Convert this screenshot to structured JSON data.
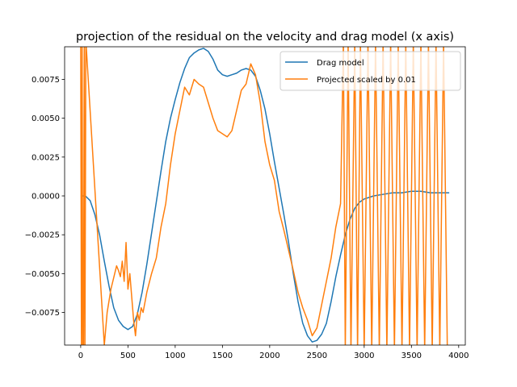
{
  "chart_data": {
    "type": "line",
    "title": "projection of the residual on the velocity and drag model (x axis)",
    "xlabel": "",
    "ylabel": "",
    "xlim": [
      -170,
      4070
    ],
    "ylim": [
      -0.0096,
      0.0096
    ],
    "xticks": [
      0,
      500,
      1000,
      1500,
      2000,
      2500,
      3000,
      3500,
      4000
    ],
    "xtick_labels": [
      "0",
      "500",
      "1000",
      "1500",
      "2000",
      "2500",
      "3000",
      "3500",
      "4000"
    ],
    "yticks": [
      -0.0075,
      -0.005,
      -0.0025,
      0.0,
      0.0025,
      0.005,
      0.0075
    ],
    "ytick_labels": [
      "−0.0075",
      "−0.0050",
      "−0.0025",
      "0.0000",
      "0.0025",
      "0.0050",
      "0.0075"
    ],
    "grid": false,
    "legend_position": "top-right",
    "series": [
      {
        "name": "Drag model",
        "color": "#1f77b4",
        "x": [
          0,
          50,
          100,
          150,
          200,
          250,
          300,
          350,
          400,
          450,
          500,
          550,
          600,
          650,
          700,
          750,
          800,
          850,
          900,
          950,
          1000,
          1050,
          1100,
          1150,
          1200,
          1250,
          1300,
          1350,
          1400,
          1450,
          1500,
          1550,
          1600,
          1650,
          1700,
          1750,
          1800,
          1850,
          1900,
          1950,
          2000,
          2050,
          2100,
          2150,
          2200,
          2250,
          2300,
          2350,
          2400,
          2450,
          2500,
          2550,
          2600,
          2650,
          2700,
          2750,
          2800,
          2850,
          2900,
          2950,
          3000,
          3100,
          3200,
          3300,
          3400,
          3500,
          3600,
          3700,
          3800,
          3900
        ],
        "y": [
          0.0,
          0.0,
          -0.0003,
          -0.0012,
          -0.0025,
          -0.0042,
          -0.0058,
          -0.0072,
          -0.008,
          -0.0084,
          -0.0086,
          -0.0084,
          -0.0076,
          -0.0062,
          -0.0044,
          -0.0024,
          -0.0004,
          0.0016,
          0.0035,
          0.005,
          0.0062,
          0.0073,
          0.0082,
          0.0089,
          0.0092,
          0.0094,
          0.0095,
          0.0093,
          0.0088,
          0.0081,
          0.0078,
          0.0077,
          0.0078,
          0.0079,
          0.0081,
          0.0082,
          0.0081,
          0.0077,
          0.0068,
          0.0056,
          0.004,
          0.0022,
          0.0005,
          -0.0012,
          -0.003,
          -0.005,
          -0.0068,
          -0.0082,
          -0.009,
          -0.0094,
          -0.0093,
          -0.0089,
          -0.0082,
          -0.0068,
          -0.0052,
          -0.0038,
          -0.0025,
          -0.0015,
          -0.0008,
          -0.0004,
          -0.0002,
          0.0,
          0.0001,
          0.0002,
          0.0002,
          0.0003,
          0.0003,
          0.0002,
          0.0002,
          0.0002
        ]
      },
      {
        "name": "Projected scaled by 0.01",
        "color": "#ff7f0e",
        "x": [
          0,
          8,
          15,
          22,
          30,
          38,
          45,
          55,
          250,
          280,
          320,
          340,
          360,
          380,
          400,
          420,
          440,
          460,
          480,
          500,
          520,
          540,
          560,
          580,
          600,
          620,
          640,
          660,
          700,
          750,
          800,
          850,
          900,
          950,
          1000,
          1050,
          1100,
          1150,
          1200,
          1250,
          1300,
          1350,
          1400,
          1450,
          1500,
          1550,
          1600,
          1650,
          1700,
          1750,
          1800,
          1850,
          1900,
          1950,
          2000,
          2050,
          2100,
          2150,
          2200,
          2250,
          2300,
          2350,
          2400,
          2450,
          2500,
          2550,
          2600,
          2650,
          2700,
          2750,
          2780,
          2800,
          2830,
          2860,
          2900,
          2930,
          2960,
          3000,
          3040,
          3080,
          3120,
          3160,
          3200,
          3240,
          3280,
          3320,
          3360,
          3400,
          3440,
          3480,
          3520,
          3560,
          3600,
          3640,
          3680,
          3720,
          3760,
          3800,
          3840,
          3880
        ],
        "y": [
          0.01,
          -0.01,
          0.01,
          -0.01,
          -0.01,
          0.01,
          -0.01,
          0.01,
          -0.0096,
          -0.0075,
          -0.006,
          -0.0055,
          -0.005,
          -0.0045,
          -0.0048,
          -0.0052,
          -0.0042,
          -0.0055,
          -0.003,
          -0.006,
          -0.005,
          -0.0065,
          -0.008,
          -0.009,
          -0.0075,
          -0.008,
          -0.0072,
          -0.0075,
          -0.0062,
          -0.005,
          -0.004,
          -0.002,
          -0.0005,
          0.002,
          0.004,
          0.0055,
          0.007,
          0.0065,
          0.0075,
          0.0072,
          0.007,
          0.006,
          0.005,
          0.0042,
          0.004,
          0.0038,
          0.0042,
          0.0055,
          0.0068,
          0.0072,
          0.0085,
          0.0078,
          0.006,
          0.0035,
          0.002,
          0.001,
          -0.001,
          -0.0022,
          -0.0035,
          -0.0048,
          -0.0062,
          -0.0072,
          -0.008,
          -0.009,
          -0.0085,
          -0.007,
          -0.0055,
          -0.004,
          -0.002,
          -0.0005,
          0.01,
          -0.01,
          0.01,
          -0.01,
          0.01,
          -0.01,
          0.01,
          -0.01,
          0.01,
          -0.01,
          0.01,
          -0.01,
          0.01,
          -0.01,
          0.01,
          -0.01,
          0.01,
          -0.01,
          0.01,
          -0.01,
          0.01,
          -0.01,
          0.01,
          -0.01,
          0.01,
          -0.01,
          0.01,
          -0.01,
          0.01,
          -0.01
        ]
      }
    ]
  }
}
